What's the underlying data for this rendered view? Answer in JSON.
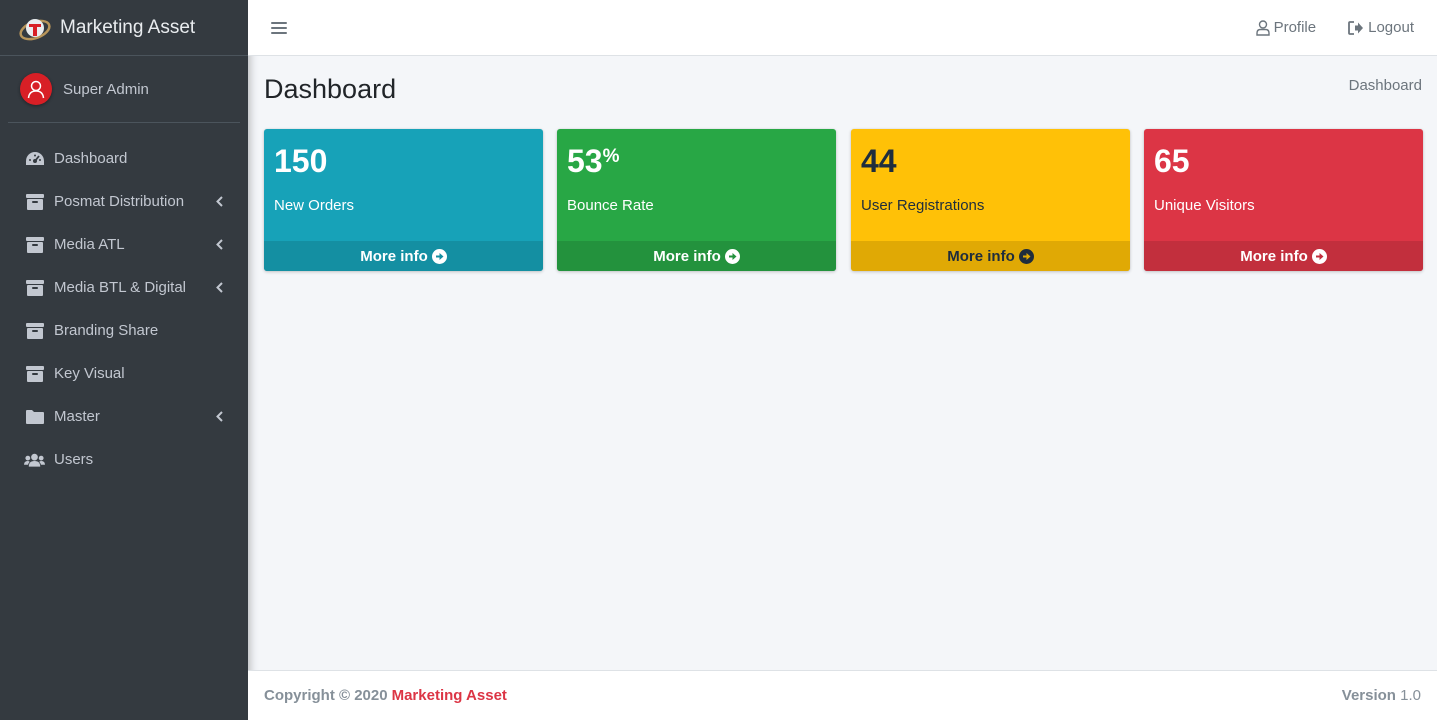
{
  "brand": {
    "name": "Marketing Asset"
  },
  "user": {
    "name": "Super Admin"
  },
  "sidebar": {
    "items": [
      {
        "label": "Dashboard",
        "icon": "tachometer-icon",
        "has_caret": false
      },
      {
        "label": "Posmat Distribution",
        "icon": "archive-icon",
        "has_caret": true
      },
      {
        "label": "Media ATL",
        "icon": "archive-icon",
        "has_caret": true
      },
      {
        "label": "Media BTL & Digital",
        "icon": "archive-icon",
        "has_caret": true
      },
      {
        "label": "Branding Share",
        "icon": "archive-icon",
        "has_caret": false
      },
      {
        "label": "Key Visual",
        "icon": "archive-icon",
        "has_caret": false
      },
      {
        "label": "Master",
        "icon": "folder-icon",
        "has_caret": true
      },
      {
        "label": "Users",
        "icon": "users-icon",
        "has_caret": false
      }
    ]
  },
  "header": {
    "profile_label": "Profile",
    "logout_label": "Logout"
  },
  "page": {
    "title": "Dashboard",
    "breadcrumb": "Dashboard"
  },
  "boxes": [
    {
      "number": "150",
      "suffix": "",
      "label": "New Orders",
      "footer": "More info",
      "color": "#17a2b8"
    },
    {
      "number": "53",
      "suffix": "%",
      "label": "Bounce Rate",
      "footer": "More info",
      "color": "#28a745"
    },
    {
      "number": "44",
      "suffix": "",
      "label": "User Registrations",
      "footer": "More info",
      "color": "#ffc107"
    },
    {
      "number": "65",
      "suffix": "",
      "label": "Unique Visitors",
      "footer": "More info",
      "color": "#dc3545"
    }
  ],
  "footer": {
    "copyright": "Copyright © 2020",
    "brand": "Marketing Asset",
    "version_label": "Version",
    "version_value": "1.0"
  }
}
